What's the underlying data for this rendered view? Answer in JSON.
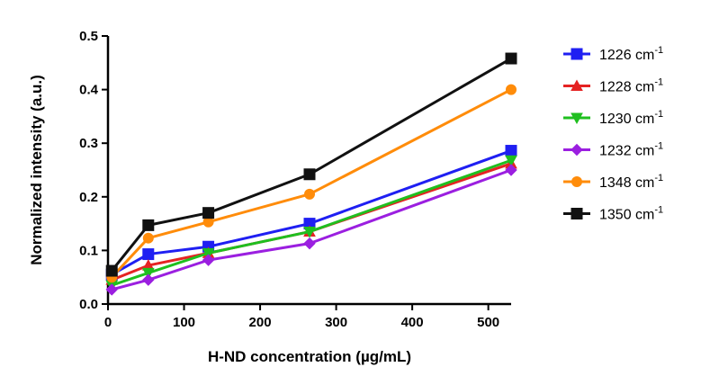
{
  "chart_data": {
    "type": "line",
    "xlabel": "H-ND concentration (µg/mL)",
    "ylabel": "Normalized intensity (a.u.)",
    "xlim": [
      0,
      530
    ],
    "ylim": [
      0,
      0.5
    ],
    "xticks": [
      0,
      100,
      200,
      300,
      400,
      500
    ],
    "xtick_labels": [
      "0",
      "100",
      "200",
      "300",
      "400",
      "500"
    ],
    "yticks": [
      0,
      0.1,
      0.2,
      0.3,
      0.4,
      0.5
    ],
    "ytick_labels": [
      "0.0",
      "0.1",
      "0.2",
      "0.3",
      "0.4",
      "0.5"
    ],
    "x": [
      5,
      53,
      132,
      265,
      530
    ],
    "grid": false,
    "legend_position": "right",
    "series": [
      {
        "name": "1226 cm",
        "sup": "-1",
        "color": "#1f1ff2",
        "marker": "square",
        "values": [
          0.055,
          0.093,
          0.107,
          0.15,
          0.286
        ]
      },
      {
        "name": "1228 cm",
        "sup": "-1",
        "color": "#e52323",
        "marker": "triangle-up",
        "values": [
          0.045,
          0.072,
          0.095,
          0.135,
          0.262
        ]
      },
      {
        "name": "1230 cm",
        "sup": "-1",
        "color": "#1fbf1f",
        "marker": "triangle-down",
        "values": [
          0.035,
          0.058,
          0.095,
          0.135,
          0.268
        ]
      },
      {
        "name": "1232 cm",
        "sup": "-1",
        "color": "#9b1fe0",
        "marker": "diamond",
        "values": [
          0.027,
          0.045,
          0.082,
          0.113,
          0.25
        ]
      },
      {
        "name": "1348 cm",
        "sup": "-1",
        "color": "#ff8c0a",
        "marker": "circle",
        "values": [
          0.05,
          0.123,
          0.153,
          0.205,
          0.4
        ]
      },
      {
        "name": "1350 cm",
        "sup": "-1",
        "color": "#111111",
        "marker": "square",
        "values": [
          0.062,
          0.147,
          0.17,
          0.242,
          0.458
        ]
      }
    ]
  }
}
